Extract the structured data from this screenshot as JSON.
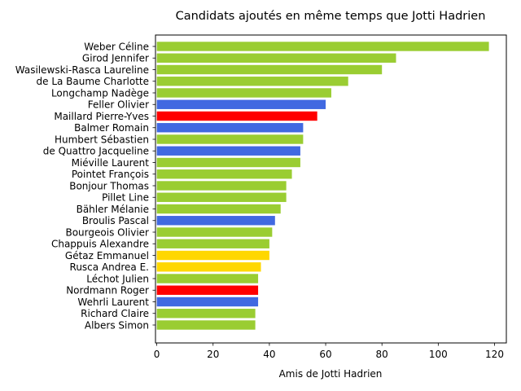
{
  "chart_data": {
    "type": "bar",
    "orientation": "horizontal",
    "title": "Candidats ajoutés en même temps que Jotti Hadrien",
    "xlabel": "Amis de Jotti Hadrien",
    "ylabel": "",
    "xlim": [
      0,
      124
    ],
    "xticks": [
      "0",
      "20",
      "40",
      "60",
      "80",
      "100",
      "120"
    ],
    "grid": false,
    "legend": "none",
    "categories": [
      "Weber Céline",
      "Girod Jennifer",
      "Wasilewski-Rasca Laureline",
      "de La Baume Charlotte",
      "Longchamp Nadège",
      "Feller Olivier",
      "Maillard Pierre-Yves",
      "Balmer Romain",
      "Humbert Sébastien",
      "de Quattro Jacqueline",
      "Miéville Laurent",
      "Pointet François",
      "Bonjour Thomas",
      "Pillet Line",
      "Bähler Mélanie",
      "Broulis Pascal",
      "Bourgeois Olivier",
      "Chappuis Alexandre",
      "Gétaz Emmanuel",
      "Rusca Andrea E.",
      "Léchot Julien",
      "Nordmann Roger",
      "Wehrli Laurent",
      "Richard Claire",
      "Albers Simon"
    ],
    "values": [
      118,
      85,
      80,
      68,
      62,
      60,
      57,
      52,
      52,
      51,
      51,
      48,
      46,
      46,
      44,
      42,
      41,
      40,
      40,
      37,
      36,
      36,
      36,
      35,
      35
    ],
    "colors": [
      "#9acd32",
      "#9acd32",
      "#9acd32",
      "#9acd32",
      "#9acd32",
      "#4169e1",
      "#ff0000",
      "#4169e1",
      "#9acd32",
      "#4169e1",
      "#9acd32",
      "#9acd32",
      "#9acd32",
      "#9acd32",
      "#9acd32",
      "#4169e1",
      "#9acd32",
      "#9acd32",
      "#ffd700",
      "#ffd700",
      "#9acd32",
      "#ff0000",
      "#4169e1",
      "#9acd32",
      "#9acd32"
    ]
  }
}
